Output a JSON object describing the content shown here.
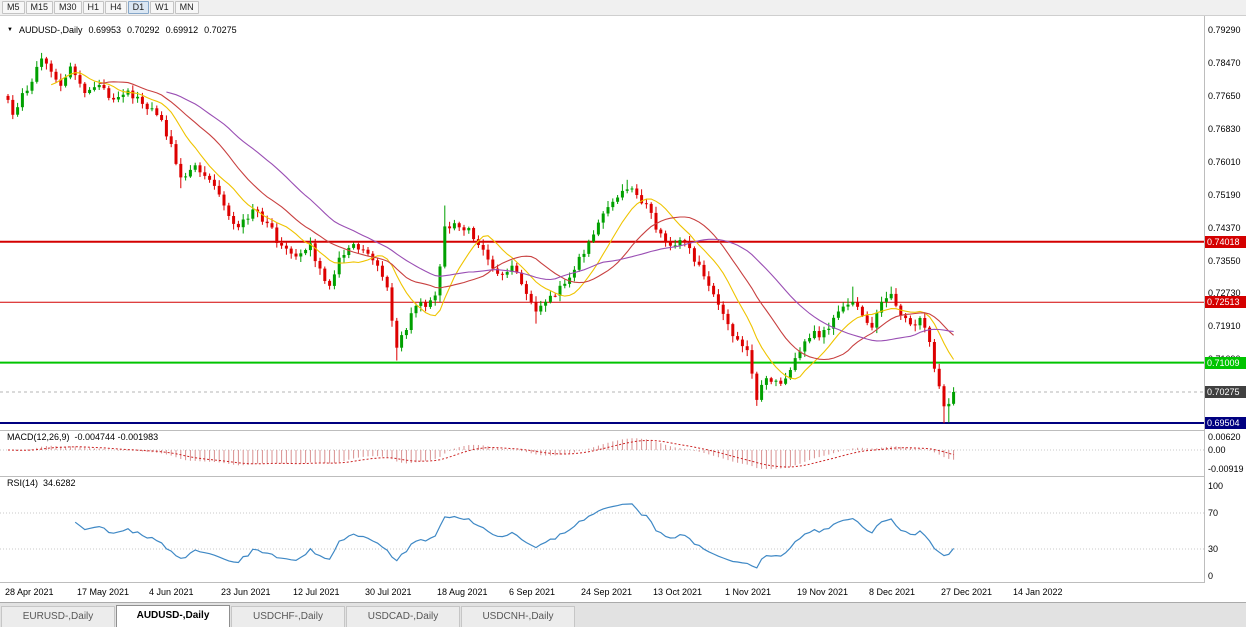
{
  "toolbar": {
    "timeframes": [
      "M5",
      "M15",
      "M30",
      "H1",
      "H4",
      "D1",
      "W1",
      "MN"
    ],
    "active": "D1"
  },
  "chart": {
    "header": {
      "symbol": "AUDUSD-,Daily",
      "open": "0.69953",
      "high": "0.70292",
      "low": "0.69912",
      "close": "0.70275"
    },
    "axis": {
      "price_labels": [
        "0.79290",
        "0.78470",
        "0.77650",
        "0.76830",
        "0.76010",
        "0.75190",
        "0.74370",
        "0.73550",
        "0.72730",
        "0.71910",
        "0.71090"
      ]
    },
    "level_lines": [
      {
        "label": "0.74018",
        "price": 0.74018,
        "color": "#D40000",
        "width": 2
      },
      {
        "label": "0.72513",
        "price": 0.72513,
        "color": "#D40000",
        "width": 1
      },
      {
        "label": "0.71009",
        "price": 0.71009,
        "color": "#00C400",
        "width": 2
      },
      {
        "label": "0.69504",
        "price": 0.69504,
        "color": "#000080",
        "width": 2
      }
    ],
    "current_price": {
      "label": "0.70275",
      "value": 0.70275,
      "badge_color": "#404040"
    },
    "dates": [
      "28 Apr 2021",
      "17 May 2021",
      "4 Jun 2021",
      "23 Jun 2021",
      "12 Jul 2021",
      "30 Jul 2021",
      "18 Aug 2021",
      "6 Sep 2021",
      "24 Sep 2021",
      "13 Oct 2021",
      "1 Nov 2021",
      "19 Nov 2021",
      "8 Dec 2021",
      "27 Dec 2021",
      "14 Jan 2022"
    ]
  },
  "indicators": {
    "macd": {
      "label": "MACD(12,26,9)",
      "values": "-0.004744 -0.001983",
      "axis_labels": [
        "0.00620",
        "0.00",
        "-0.00919"
      ]
    },
    "rsi": {
      "label": "RSI(14)",
      "value": "34.6282",
      "axis_labels": [
        "100",
        "70",
        "30",
        "0"
      ]
    }
  },
  "tabs": [
    {
      "label": "EURUSD-,Daily",
      "active": false
    },
    {
      "label": "AUDUSD-,Daily",
      "active": true
    },
    {
      "label": "USDCHF-,Daily",
      "active": false
    },
    {
      "label": "USDCAD-,Daily",
      "active": false
    },
    {
      "label": "USDCNH-,Daily",
      "active": false
    }
  ],
  "chart_data": {
    "type": "candlestick",
    "symbol": "AUDUSD",
    "timeframe": "Daily",
    "x_range": [
      "28 Apr 2021",
      "28 Jan 2022"
    ],
    "y_range": [
      0.695,
      0.7929
    ],
    "num_candles": 198,
    "colors": {
      "up": "#00A000",
      "down": "#DD0000",
      "ma_fast": "#EFC400",
      "ma_mid": "#C84040",
      "ma_slow": "#9A4FB4",
      "macd_hist": "#D99090",
      "macd_signal": "#CC2222",
      "rsi_line": "#3E88C5",
      "levels_dotted": "#C8C8C8"
    },
    "anchors": [
      [
        0,
        0.7755
      ],
      [
        1,
        0.7718
      ],
      [
        3,
        0.7772
      ],
      [
        5,
        0.78
      ],
      [
        7,
        0.7858
      ],
      [
        9,
        0.7825
      ],
      [
        11,
        0.779
      ],
      [
        13,
        0.7838
      ],
      [
        16,
        0.7772
      ],
      [
        19,
        0.7792
      ],
      [
        22,
        0.7756
      ],
      [
        25,
        0.7778
      ],
      [
        29,
        0.7732
      ],
      [
        32,
        0.7705
      ],
      [
        34,
        0.7645
      ],
      [
        36,
        0.7562
      ],
      [
        39,
        0.7592
      ],
      [
        42,
        0.7556
      ],
      [
        45,
        0.7492
      ],
      [
        48,
        0.7438
      ],
      [
        51,
        0.7482
      ],
      [
        54,
        0.7448
      ],
      [
        57,
        0.7392
      ],
      [
        60,
        0.7365
      ],
      [
        63,
        0.7398
      ],
      [
        65,
        0.7335
      ],
      [
        67,
        0.7292
      ],
      [
        69,
        0.7362
      ],
      [
        72,
        0.7396
      ],
      [
        75,
        0.7372
      ],
      [
        77,
        0.7342
      ],
      [
        79,
        0.7288
      ],
      [
        80,
        0.7205
      ],
      [
        81,
        0.7138
      ],
      [
        83,
        0.7182
      ],
      [
        85,
        0.7242
      ],
      [
        88,
        0.7256
      ],
      [
        89,
        0.7268
      ],
      [
        90,
        0.734
      ],
      [
        91,
        0.744
      ],
      [
        93,
        0.7448
      ],
      [
        96,
        0.7436
      ],
      [
        99,
        0.7382
      ],
      [
        102,
        0.7322
      ],
      [
        105,
        0.7342
      ],
      [
        108,
        0.7272
      ],
      [
        110,
        0.7228
      ],
      [
        112,
        0.7252
      ],
      [
        115,
        0.7292
      ],
      [
        118,
        0.7332
      ],
      [
        121,
        0.7402
      ],
      [
        124,
        0.7472
      ],
      [
        127,
        0.7512
      ],
      [
        129,
        0.7532
      ],
      [
        131,
        0.7518
      ],
      [
        133,
        0.7496
      ],
      [
        135,
        0.7432
      ],
      [
        138,
        0.7392
      ],
      [
        141,
        0.7402
      ],
      [
        143,
        0.7352
      ],
      [
        146,
        0.7292
      ],
      [
        149,
        0.7222
      ],
      [
        152,
        0.7158
      ],
      [
        154,
        0.7132
      ],
      [
        156,
        0.7008
      ],
      [
        158,
        0.7062
      ],
      [
        161,
        0.7048
      ],
      [
        164,
        0.7112
      ],
      [
        167,
        0.7162
      ],
      [
        170,
        0.7182
      ],
      [
        173,
        0.7228
      ],
      [
        176,
        0.7252
      ],
      [
        178,
        0.7218
      ],
      [
        180,
        0.7188
      ],
      [
        182,
        0.7252
      ],
      [
        184,
        0.7272
      ],
      [
        186,
        0.7218
      ],
      [
        188,
        0.7196
      ],
      [
        190,
        0.7212
      ],
      [
        192,
        0.7152
      ],
      [
        194,
        0.7042
      ],
      [
        195,
        0.6992
      ],
      [
        196,
        0.6998
      ],
      [
        197,
        0.70275
      ]
    ],
    "wick_overrides": {
      "7": {
        "high": 0.7872
      },
      "8": {
        "high": 0.7862
      },
      "36": {
        "low": 0.7535
      },
      "81": {
        "low": 0.7106
      },
      "91": {
        "high": 0.7492
      },
      "110": {
        "low": 0.7198
      },
      "128": {
        "high": 0.7545
      },
      "129": {
        "high": 0.7556
      },
      "130": {
        "high": 0.754
      },
      "156": {
        "low": 0.6993
      },
      "176": {
        "high": 0.729
      },
      "184": {
        "high": 0.729
      },
      "195": {
        "low": 0.695
      },
      "196": {
        "low": 0.6952
      }
    },
    "moving_averages": [
      {
        "period": 10,
        "color": "#EFC400"
      },
      {
        "period": 20,
        "color": "#C84040"
      },
      {
        "period": 34,
        "color": "#9A4FB4"
      }
    ],
    "macd_params": {
      "fast": 12,
      "slow": 26,
      "signal": 9
    },
    "rsi_params": {
      "period": 14,
      "levels": [
        70,
        30
      ]
    }
  }
}
